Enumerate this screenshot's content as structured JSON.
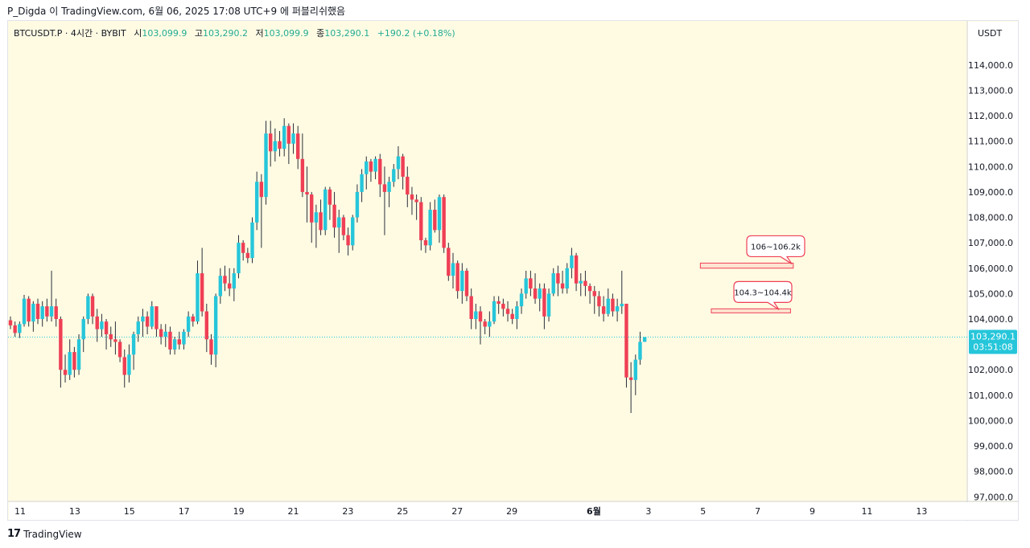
{
  "header": {
    "publish_line": "P_Digda 이 TradingView.com, 6월 06, 2025 17:08 UTC+9 에 퍼블리쉬했음"
  },
  "legend": {
    "symbol": "BTCUSDT.P · 4시간 · BYBIT",
    "open_label": "시",
    "open": "103,099.9",
    "high_label": "고",
    "high": "103,290.2",
    "low_label": "저",
    "low": "103,099.9",
    "close_label": "종",
    "close": "103,290.1",
    "change": "+190.2 (+0.18%)"
  },
  "price_axis": {
    "currency": "USDT",
    "last_price": "103,290.1",
    "countdown": "03:51:08"
  },
  "footer": {
    "logo": "17",
    "brand": "TradingView"
  },
  "colors": {
    "up": "#26c6da",
    "down": "#ef3f55",
    "background": "#fffbe3",
    "badge": "#26c6da",
    "zone": "#ef3f55"
  },
  "chart_data": {
    "type": "candlestick",
    "ylim": [
      96800,
      115600
    ],
    "y_ticks": [
      "97,000.0",
      "98,000.0",
      "99,000.0",
      "100,000.0",
      "101,000.0",
      "102,000.0",
      "104,000.0",
      "105,000.0",
      "106,000.0",
      "107,000.0",
      "108,000.0",
      "109,000.0",
      "110,000.0",
      "111,000.0",
      "112,000.0",
      "113,000.0",
      "114,000.0"
    ],
    "y_tick_values": [
      97000,
      98000,
      99000,
      100000,
      101000,
      102000,
      104000,
      105000,
      106000,
      107000,
      108000,
      109000,
      110000,
      111000,
      112000,
      113000,
      114000
    ],
    "x_ticks": [
      {
        "label": "11",
        "day": 11
      },
      {
        "label": "13",
        "day": 13
      },
      {
        "label": "15",
        "day": 15
      },
      {
        "label": "17",
        "day": 17
      },
      {
        "label": "19",
        "day": 19
      },
      {
        "label": "21",
        "day": 21
      },
      {
        "label": "23",
        "day": 23
      },
      {
        "label": "25",
        "day": 25
      },
      {
        "label": "27",
        "day": 27
      },
      {
        "label": "29",
        "day": 29
      },
      {
        "label": "6월",
        "day": 32
      },
      {
        "label": "3",
        "day": 34
      },
      {
        "label": "5",
        "day": 36
      },
      {
        "label": "7",
        "day": 38
      },
      {
        "label": "9",
        "day": 40
      },
      {
        "label": "11",
        "day": 42
      },
      {
        "label": "13",
        "day": 44
      }
    ],
    "zones": [
      {
        "label": "106~106.2k",
        "low": 106000,
        "high": 106200,
        "from_day": 35.9,
        "to_day": 39.3
      },
      {
        "label": "104.3~104.4k",
        "low": 104300,
        "high": 104400,
        "from_day": 36.3,
        "to_day": 39.2
      }
    ],
    "last_price": 103290.1,
    "candles": [
      [
        103950,
        104100,
        103600,
        103750
      ],
      [
        103750,
        103900,
        103300,
        103450
      ],
      [
        103450,
        103900,
        103250,
        103800
      ],
      [
        103800,
        104950,
        103700,
        104800
      ],
      [
        104800,
        104900,
        103700,
        103900
      ],
      [
        103900,
        104700,
        103500,
        104600
      ],
      [
        104600,
        104800,
        103800,
        104000
      ],
      [
        104000,
        104700,
        103700,
        104500
      ],
      [
        104500,
        104800,
        103900,
        104100
      ],
      [
        104100,
        105900,
        103900,
        104500
      ],
      [
        104500,
        104800,
        103700,
        104000
      ],
      [
        104000,
        104100,
        101300,
        102000
      ],
      [
        102000,
        102600,
        101500,
        101800
      ],
      [
        101800,
        103200,
        101600,
        102700
      ],
      [
        102700,
        102900,
        101700,
        102000
      ],
      [
        102000,
        103400,
        101800,
        103200
      ],
      [
        103200,
        104100,
        102700,
        104000
      ],
      [
        104000,
        105000,
        103800,
        104900
      ],
      [
        104900,
        105000,
        103800,
        104100
      ],
      [
        104100,
        104400,
        103100,
        103600
      ],
      [
        103600,
        104200,
        103300,
        103900
      ],
      [
        103900,
        104000,
        102800,
        103400
      ],
      [
        103400,
        103700,
        102900,
        103200
      ],
      [
        103200,
        103900,
        102600,
        103100
      ],
      [
        103100,
        103200,
        102300,
        102500
      ],
      [
        102500,
        102800,
        101300,
        101800
      ],
      [
        101800,
        103000,
        101500,
        102600
      ],
      [
        102600,
        103500,
        102000,
        103400
      ],
      [
        103400,
        104100,
        103100,
        103900
      ],
      [
        103900,
        104400,
        103300,
        104100
      ],
      [
        104100,
        104300,
        103400,
        103700
      ],
      [
        103700,
        104700,
        103600,
        104500
      ],
      [
        104500,
        104500,
        103300,
        103600
      ],
      [
        103600,
        103800,
        103000,
        103300
      ],
      [
        103300,
        103800,
        102900,
        103500
      ],
      [
        103500,
        103700,
        102600,
        102800
      ],
      [
        102800,
        103300,
        102600,
        103200
      ],
      [
        103200,
        103500,
        102800,
        103000
      ],
      [
        103000,
        103600,
        102800,
        103500
      ],
      [
        103500,
        104300,
        103300,
        104100
      ],
      [
        104100,
        104200,
        103700,
        103900
      ],
      [
        103900,
        106300,
        103800,
        105800
      ],
      [
        105800,
        106800,
        104100,
        104300
      ],
      [
        104300,
        104600,
        102700,
        103200
      ],
      [
        103200,
        103400,
        102200,
        102600
      ],
      [
        102600,
        105000,
        102100,
        104900
      ],
      [
        104900,
        106000,
        104600,
        105700
      ],
      [
        105700,
        106100,
        105100,
        105400
      ],
      [
        105400,
        106000,
        104900,
        105200
      ],
      [
        105200,
        106000,
        104700,
        105800
      ],
      [
        105800,
        107300,
        105600,
        107000
      ],
      [
        107000,
        107100,
        106300,
        106600
      ],
      [
        106600,
        106800,
        106200,
        106400
      ],
      [
        106400,
        108000,
        106200,
        107800
      ],
      [
        107800,
        109800,
        107500,
        109400
      ],
      [
        109400,
        109700,
        106800,
        108800
      ],
      [
        108800,
        111800,
        108500,
        111300
      ],
      [
        111300,
        111800,
        110000,
        110600
      ],
      [
        110600,
        111500,
        110200,
        111000
      ],
      [
        111000,
        111400,
        110400,
        110700
      ],
      [
        110700,
        111900,
        110400,
        111600
      ],
      [
        111600,
        111700,
        110100,
        110900
      ],
      [
        110900,
        111700,
        110500,
        111300
      ],
      [
        111300,
        111600,
        109900,
        110300
      ],
      [
        110300,
        111300,
        108800,
        109000
      ],
      [
        109000,
        110000,
        107800,
        108900
      ],
      [
        108900,
        109000,
        107000,
        107800
      ],
      [
        107800,
        108500,
        106800,
        108200
      ],
      [
        108200,
        108700,
        107300,
        107500
      ],
      [
        107500,
        109200,
        107300,
        109100
      ],
      [
        109100,
        109200,
        107900,
        108500
      ],
      [
        108500,
        109000,
        107200,
        107600
      ],
      [
        107600,
        108300,
        106600,
        108000
      ],
      [
        108000,
        108100,
        107100,
        107300
      ],
      [
        107300,
        107600,
        106500,
        106900
      ],
      [
        106900,
        108100,
        106700,
        108000
      ],
      [
        108000,
        109300,
        107800,
        109000
      ],
      [
        109000,
        109900,
        108600,
        109700
      ],
      [
        109700,
        110400,
        109100,
        110200
      ],
      [
        110200,
        110300,
        109400,
        109800
      ],
      [
        109800,
        110400,
        109500,
        110300
      ],
      [
        110300,
        110500,
        108800,
        109300
      ],
      [
        109300,
        110000,
        107300,
        109000
      ],
      [
        109000,
        109600,
        108400,
        109400
      ],
      [
        109400,
        110100,
        109200,
        109900
      ],
      [
        109900,
        110800,
        109500,
        110400
      ],
      [
        110400,
        110500,
        109100,
        109600
      ],
      [
        109600,
        110000,
        108400,
        108900
      ],
      [
        108900,
        109200,
        108100,
        108700
      ],
      [
        108700,
        108900,
        107900,
        108600
      ],
      [
        108600,
        108800,
        106700,
        107100
      ],
      [
        107100,
        107200,
        106600,
        106900
      ],
      [
        106900,
        108600,
        106700,
        108300
      ],
      [
        108300,
        108700,
        107400,
        107500
      ],
      [
        107500,
        108900,
        107000,
        108800
      ],
      [
        108800,
        108900,
        106600,
        106800
      ],
      [
        106800,
        107000,
        105500,
        105700
      ],
      [
        105700,
        106600,
        105200,
        106200
      ],
      [
        106200,
        106300,
        104800,
        105100
      ],
      [
        105100,
        106200,
        104600,
        105900
      ],
      [
        105900,
        106000,
        104700,
        104900
      ],
      [
        104900,
        105200,
        103600,
        104000
      ],
      [
        104000,
        104600,
        103600,
        104300
      ],
      [
        104300,
        104500,
        103000,
        103900
      ],
      [
        103900,
        104000,
        103400,
        103700
      ],
      [
        103700,
        104300,
        103300,
        103900
      ],
      [
        103900,
        104900,
        103800,
        104700
      ],
      [
        104700,
        104900,
        104200,
        104600
      ],
      [
        104600,
        104800,
        104100,
        104400
      ],
      [
        104400,
        104700,
        103900,
        104200
      ],
      [
        104200,
        104400,
        103800,
        104000
      ],
      [
        104000,
        104700,
        103600,
        104500
      ],
      [
        104500,
        105200,
        104200,
        105000
      ],
      [
        105000,
        105900,
        104800,
        105600
      ],
      [
        105600,
        105900,
        104900,
        105200
      ],
      [
        105200,
        105800,
        104600,
        104800
      ],
      [
        104800,
        105400,
        104300,
        105200
      ],
      [
        105200,
        105400,
        103600,
        104100
      ],
      [
        104100,
        105200,
        103900,
        105000
      ],
      [
        105000,
        106000,
        104900,
        105800
      ],
      [
        105800,
        106100,
        104900,
        105400
      ],
      [
        105400,
        105900,
        105000,
        105200
      ],
      [
        105200,
        106200,
        105000,
        106000
      ],
      [
        106000,
        106800,
        105600,
        106500
      ],
      [
        106500,
        106600,
        105100,
        105400
      ],
      [
        105400,
        105800,
        104900,
        105500
      ],
      [
        105500,
        105900,
        104900,
        105300
      ],
      [
        105300,
        105400,
        104600,
        105100
      ],
      [
        105100,
        105300,
        104200,
        104900
      ],
      [
        104900,
        105100,
        104100,
        104500
      ],
      [
        104500,
        104900,
        103900,
        104200
      ],
      [
        104200,
        105200,
        104100,
        104800
      ],
      [
        104800,
        105000,
        104100,
        104300
      ],
      [
        104300,
        104800,
        103900,
        104500
      ],
      [
        104500,
        105900,
        104200,
        104600
      ],
      [
        104600,
        104600,
        101300,
        101700
      ],
      [
        101700,
        102300,
        100300,
        101600
      ],
      [
        101600,
        102600,
        101000,
        102400
      ],
      [
        102400,
        103500,
        102200,
        103100
      ],
      [
        103099.9,
        103290.2,
        103099.9,
        103290.1
      ]
    ]
  }
}
